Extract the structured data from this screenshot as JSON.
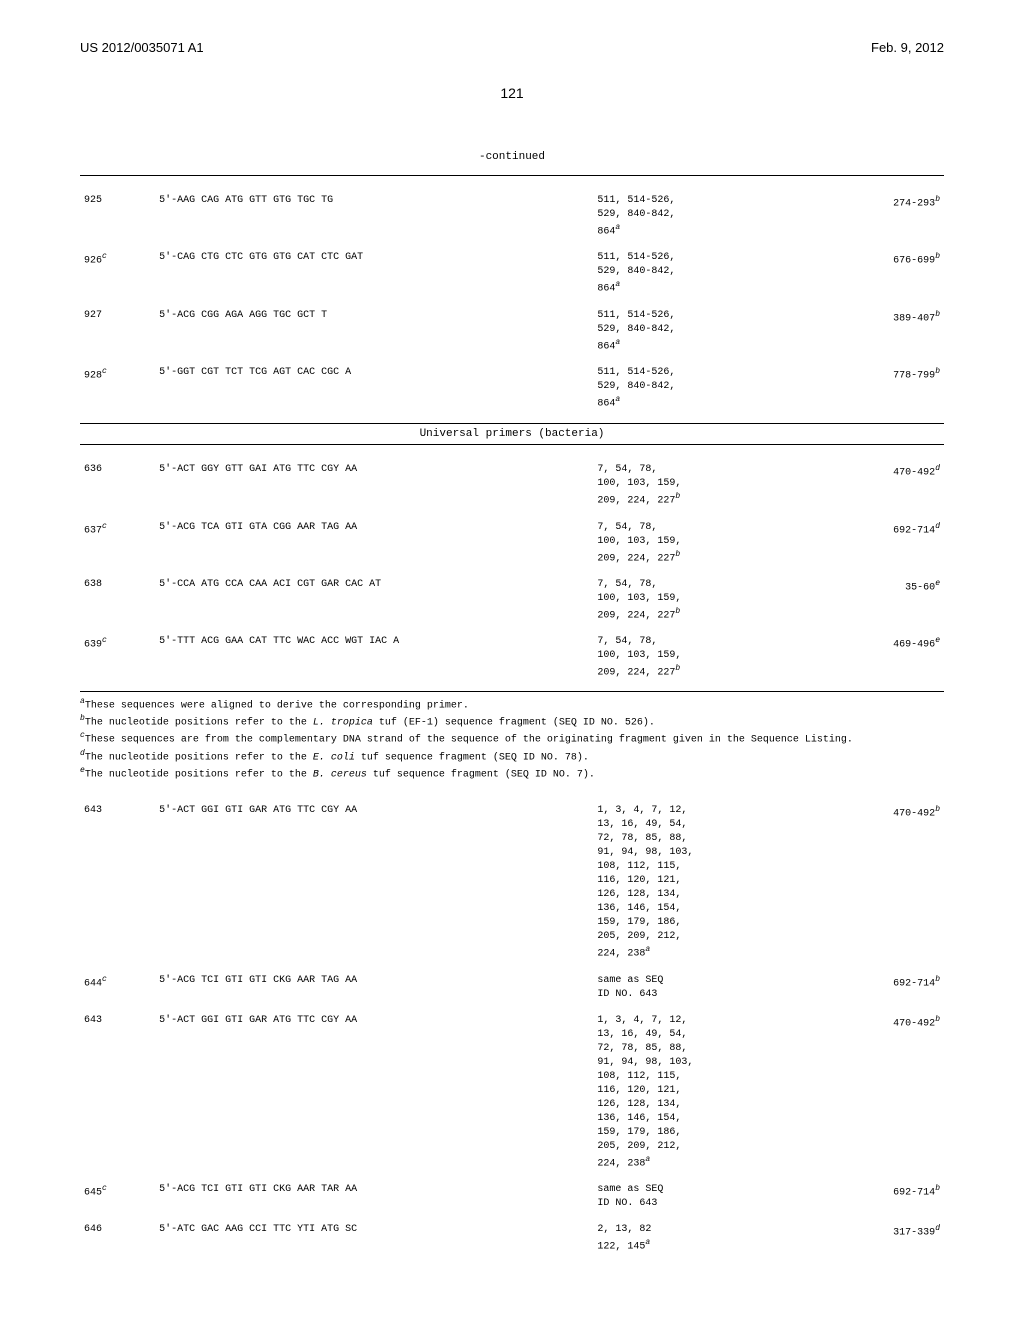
{
  "header": {
    "left": "US 2012/0035071 A1",
    "right": "Feb. 9, 2012"
  },
  "page_number": "121",
  "continued_label": "-continued",
  "section_header": "Universal primers (bacteria)",
  "top_rows": [
    {
      "id": "925",
      "id_sup": "",
      "seq": "5'-AAG CAG ATG GTT GTG TGC TG",
      "orig": "511, 514-526,\n529, 840-842,\n864",
      "orig_sup": "a",
      "pos": "274-293",
      "pos_sup": "b"
    },
    {
      "id": "926",
      "id_sup": "c",
      "seq": "5'-CAG CTG CTC GTG GTG CAT CTC GAT",
      "orig": "511, 514-526,\n529, 840-842,\n864",
      "orig_sup": "a",
      "pos": "676-699",
      "pos_sup": "b"
    },
    {
      "id": "927",
      "id_sup": "",
      "seq": "5'-ACG CGG AGA AGG TGC GCT T",
      "orig": "511, 514-526,\n529, 840-842,\n864",
      "orig_sup": "a",
      "pos": "389-407",
      "pos_sup": "b"
    },
    {
      "id": "928",
      "id_sup": "c",
      "seq": "5'-GGT CGT TCT TCG AGT CAC CGC A",
      "orig": "511, 514-526,\n529, 840-842,\n864",
      "orig_sup": "a",
      "pos": "778-799",
      "pos_sup": "b"
    }
  ],
  "mid_rows": [
    {
      "id": "636",
      "id_sup": "",
      "seq": "5'-ACT GGY GTT GAI ATG TTC CGY AA",
      "orig": "7, 54, 78,\n100, 103, 159,\n209, 224, 227",
      "orig_sup": "b",
      "pos": "470-492",
      "pos_sup": "d"
    },
    {
      "id": "637",
      "id_sup": "c",
      "seq": "5'-ACG TCA GTI GTA CGG AAR TAG AA",
      "orig": "7, 54, 78,\n100, 103, 159,\n209, 224, 227",
      "orig_sup": "b",
      "pos": "692-714",
      "pos_sup": "d"
    },
    {
      "id": "638",
      "id_sup": "",
      "seq": "5'-CCA ATG CCA CAA ACI CGT GAR CAC AT",
      "orig": "7, 54, 78,\n100, 103, 159,\n209, 224, 227",
      "orig_sup": "b",
      "pos": "35-60",
      "pos_sup": "e"
    },
    {
      "id": "639",
      "id_sup": "c",
      "seq": "5'-TTT ACG GAA CAT TTC WAC ACC WGT IAC A",
      "orig": "7, 54, 78,\n100, 103, 159,\n209, 224, 227",
      "orig_sup": "b",
      "pos": "469-496",
      "pos_sup": "e"
    }
  ],
  "footnotes": {
    "a": "These sequences were aligned to derive the corresponding primer.",
    "b_pre": "The nucleotide positions refer to the ",
    "b_italic": "L. tropica",
    "b_post": " tuf (EF-1) sequence fragment (SEQ ID NO. 526).",
    "c": "These sequences are from the complementary DNA strand of the sequence of the originating fragment given in the Sequence Listing.",
    "d_pre": "The nucleotide positions refer to the ",
    "d_italic": "E. coli",
    "d_post": " tuf sequence fragment (SEQ ID NO. 78).",
    "e_pre": "The nucleotide positions refer to the ",
    "e_italic": "B. cereus",
    "e_post": " tuf sequence fragment (SEQ ID NO. 7)."
  },
  "bottom_rows": [
    {
      "id": "643",
      "id_sup": "",
      "seq": "5'-ACT GGI GTI GAR ATG TTC CGY AA",
      "orig": "1, 3, 4, 7, 12,\n13, 16, 49, 54,\n72, 78, 85, 88,\n91, 94, 98, 103,\n108, 112, 115,\n116, 120, 121,\n126, 128, 134,\n136, 146, 154,\n159, 179, 186,\n205, 209, 212,\n224, 238",
      "orig_sup": "a",
      "pos": "470-492",
      "pos_sup": "b"
    },
    {
      "id": "644",
      "id_sup": "c",
      "seq": "5'-ACG TCI GTI GTI CKG AAR TAG AA",
      "orig": "same as SEQ\nID NO. 643",
      "orig_sup": "",
      "pos": "692-714",
      "pos_sup": "b"
    },
    {
      "id": "643",
      "id_sup": "",
      "seq": "5'-ACT GGI GTI GAR ATG TTC CGY AA",
      "orig": "1, 3, 4, 7, 12,\n13, 16, 49, 54,\n72, 78, 85, 88,\n91, 94, 98, 103,\n108, 112, 115,\n116, 120, 121,\n126, 128, 134,\n136, 146, 154,\n159, 179, 186,\n205, 209, 212,\n224, 238",
      "orig_sup": "a",
      "pos": "470-492",
      "pos_sup": "b"
    },
    {
      "id": "645",
      "id_sup": "c",
      "seq": "5'-ACG TCI GTI GTI CKG AAR TAR AA",
      "orig": "same as SEQ\nID NO. 643",
      "orig_sup": "",
      "pos": "692-714",
      "pos_sup": "b"
    },
    {
      "id": "646",
      "id_sup": "",
      "seq": "5'-ATC GAC AAG CCI TTC YTI ATG SC",
      "orig": "2, 13, 82\n122, 145",
      "orig_sup": "a",
      "pos": "317-339",
      "pos_sup": "d"
    }
  ]
}
